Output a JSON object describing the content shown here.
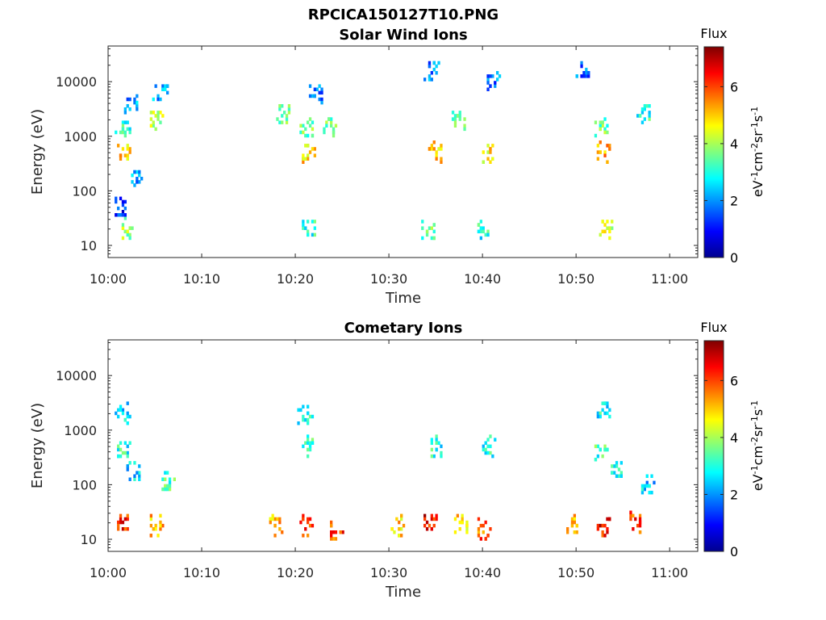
{
  "figure_title": "RPCICA150127T10.PNG",
  "colormap": [
    "#00008f",
    "#0000ff",
    "#007fff",
    "#00ffff",
    "#7fff7f",
    "#ffff00",
    "#ff7f00",
    "#ff0000",
    "#7f0000"
  ],
  "chart_data": [
    {
      "type": "heatmap",
      "title": "Solar Wind Ions",
      "xlabel": "Time",
      "ylabel": "Energy (eV)",
      "yscale": "log",
      "ylim": [
        6,
        45000
      ],
      "xlim": [
        "10:00",
        "11:03"
      ],
      "x_ticks": [
        "10:00",
        "10:10",
        "10:20",
        "10:30",
        "10:40",
        "10:50",
        "11:00"
      ],
      "y_ticks": [
        "10",
        "100",
        "1000",
        "10000"
      ],
      "colorbar": {
        "title": "Flux",
        "label": "eV-1cm-2sr-1s-1",
        "range": [
          0,
          7.4
        ],
        "ticks": [
          "0",
          "2",
          "4",
          "6"
        ]
      },
      "clusters": [
        {
          "t": 1.5,
          "e": 500,
          "flux": 5.0
        },
        {
          "t": 1.5,
          "e": 1500,
          "flux": 3.2
        },
        {
          "t": 2.5,
          "e": 3500,
          "flux": 2.0
        },
        {
          "t": 3.0,
          "e": 200,
          "flux": 2.0
        },
        {
          "t": 1.8,
          "e": 20,
          "flux": 3.8
        },
        {
          "t": 1.0,
          "e": 50,
          "flux": 1.2
        },
        {
          "t": 5.0,
          "e": 2000,
          "flux": 4.2
        },
        {
          "t": 5.5,
          "e": 7000,
          "flux": 2.0
        },
        {
          "t": 21.3,
          "e": 500,
          "flux": 5.0
        },
        {
          "t": 21.2,
          "e": 1500,
          "flux": 3.5
        },
        {
          "t": 21.3,
          "e": 20,
          "flux": 3.0
        },
        {
          "t": 22.2,
          "e": 6000,
          "flux": 2.0
        },
        {
          "t": 23.5,
          "e": 1500,
          "flux": 3.5
        },
        {
          "t": 18.6,
          "e": 2500,
          "flux": 3.5
        },
        {
          "t": 34.8,
          "e": 500,
          "flux": 4.8
        },
        {
          "t": 34.1,
          "e": 20,
          "flux": 3.4
        },
        {
          "t": 34.5,
          "e": 17000,
          "flux": 1.8
        },
        {
          "t": 37.3,
          "e": 2000,
          "flux": 3.8
        },
        {
          "t": 40.6,
          "e": 500,
          "flux": 4.8
        },
        {
          "t": 40.0,
          "e": 20,
          "flux": 3.0
        },
        {
          "t": 41.0,
          "e": 10000,
          "flux": 1.8
        },
        {
          "t": 52.8,
          "e": 500,
          "flux": 5.2
        },
        {
          "t": 52.6,
          "e": 1500,
          "flux": 3.5
        },
        {
          "t": 53.2,
          "e": 20,
          "flux": 4.4
        },
        {
          "t": 50.5,
          "e": 15000,
          "flux": 1.8
        },
        {
          "t": 57.2,
          "e": 2500,
          "flux": 3.0
        }
      ]
    },
    {
      "type": "heatmap",
      "title": "Cometary Ions",
      "xlabel": "Time",
      "ylabel": "Energy (eV)",
      "yscale": "log",
      "ylim": [
        6,
        45000
      ],
      "xlim": [
        "10:00",
        "11:03"
      ],
      "x_ticks": [
        "10:00",
        "10:10",
        "10:20",
        "10:30",
        "10:40",
        "10:50",
        "11:00"
      ],
      "y_ticks": [
        "10",
        "100",
        "1000",
        "10000"
      ],
      "colorbar": {
        "title": "Flux",
        "label": "eV-1cm-2sr-1s-1",
        "range": [
          0,
          7.4
        ],
        "ticks": [
          "0",
          "2",
          "4",
          "6"
        ]
      },
      "clusters": [
        {
          "t": 1.5,
          "e": 18,
          "flux": 6.2
        },
        {
          "t": 1.5,
          "e": 450,
          "flux": 3.0
        },
        {
          "t": 1.5,
          "e": 2100,
          "flux": 2.5
        },
        {
          "t": 2.7,
          "e": 180,
          "flux": 2.6
        },
        {
          "t": 5.0,
          "e": 18,
          "flux": 5.2
        },
        {
          "t": 6.2,
          "e": 110,
          "flux": 3.2
        },
        {
          "t": 17.8,
          "e": 18,
          "flux": 5.2
        },
        {
          "t": 21.0,
          "e": 18,
          "flux": 6.0
        },
        {
          "t": 21.3,
          "e": 500,
          "flux": 3.0
        },
        {
          "t": 21.0,
          "e": 2000,
          "flux": 2.8
        },
        {
          "t": 24.3,
          "e": 15,
          "flux": 6.0
        },
        {
          "t": 30.8,
          "e": 18,
          "flux": 5.0
        },
        {
          "t": 34.2,
          "e": 20,
          "flux": 6.5
        },
        {
          "t": 35.0,
          "e": 500,
          "flux": 3.0
        },
        {
          "t": 37.5,
          "e": 18,
          "flux": 5.0
        },
        {
          "t": 40.0,
          "e": 15,
          "flux": 5.8
        },
        {
          "t": 40.5,
          "e": 500,
          "flux": 3.0
        },
        {
          "t": 49.5,
          "e": 18,
          "flux": 5.0
        },
        {
          "t": 52.8,
          "e": 18,
          "flux": 6.4
        },
        {
          "t": 52.8,
          "e": 2200,
          "flux": 2.8
        },
        {
          "t": 52.6,
          "e": 400,
          "flux": 3.2
        },
        {
          "t": 54.2,
          "e": 200,
          "flux": 3.0
        },
        {
          "t": 56.3,
          "e": 20,
          "flux": 6.0
        },
        {
          "t": 57.5,
          "e": 100,
          "flux": 2.5
        }
      ]
    }
  ]
}
